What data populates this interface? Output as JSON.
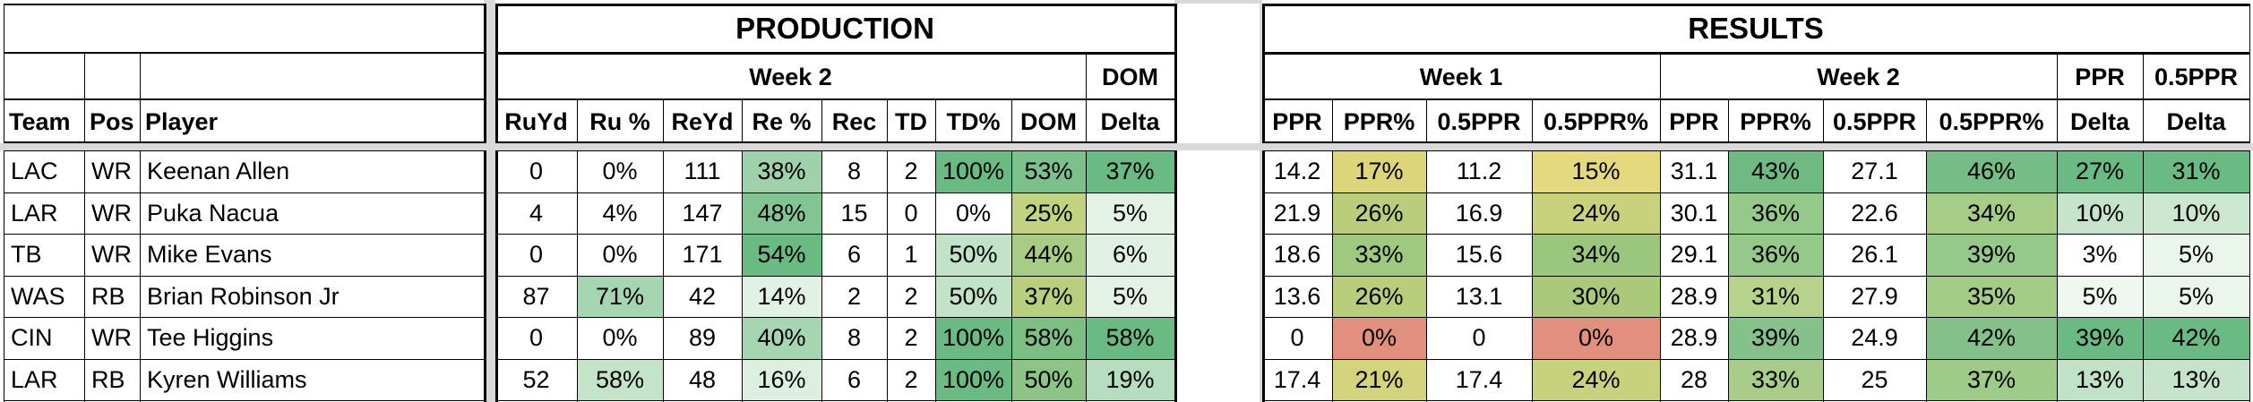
{
  "headers": {
    "production": "PRODUCTION",
    "results": "RESULTS",
    "prod_week2": "Week 2",
    "dom_top": "DOM",
    "dom_delta": "Delta",
    "res_week1": "Week 1",
    "res_week2": "Week 2",
    "ppr_top": "PPR",
    "ppr_delta": "Delta",
    "half_top": "0.5PPR",
    "half_delta": "Delta",
    "team": "Team",
    "pos": "Pos",
    "player": "Player",
    "ruyd": "RuYd",
    "rupct": "Ru %",
    "reyd": "ReYd",
    "repct": "Re %",
    "rec": "Rec",
    "td": "TD",
    "tdpct": "TD%",
    "dom": "DOM",
    "w1_ppr": "PPR",
    "w1_pprpct": "PPR%",
    "w1_half": "0.5PPR",
    "w1_halfpct": "0.5PPR%",
    "w2_ppr": "PPR",
    "w2_pprpct": "PPR%",
    "w2_half": "0.5PPR",
    "w2_halfpct": "0.5PPR%"
  },
  "colors": {
    "green_dark": "#6aba83",
    "green_mid": "#8ec99c",
    "green_light": "#c2e3c8",
    "green_pale": "#e4f2e6",
    "yellow_green": "#b5cc7a",
    "yellow": "#dfd77a",
    "yellow_light": "#e6dc86",
    "red": "#e38f7d"
  },
  "rows": [
    {
      "team": "LAC",
      "pos": "WR",
      "player": "Keenan Allen",
      "ruyd": "0",
      "rupct": "0%",
      "reyd": "111",
      "repct": "38%",
      "rec": "8",
      "td": "2",
      "tdpct": "100%",
      "dom": "53%",
      "domdelta": "37%",
      "w1ppr": "14.2",
      "w1pprpct": "17%",
      "w1half": "11.2",
      "w1halfpct": "15%",
      "w2ppr": "31.1",
      "w2pprpct": "43%",
      "w2half": "27.1",
      "w2halfpct": "46%",
      "pprdelta": "27%",
      "halfdelta": "31%",
      "bg": {
        "rupct": "",
        "repct": "#9fd1ab",
        "tdpct": "#6aba83",
        "dom": "#7cc08c",
        "domdelta": "#6aba83",
        "w1pprpct": "#dcd57a",
        "w1halfpct": "#e4d97e",
        "w2pprpct": "#6fb983",
        "w2halfpct": "#76bc86",
        "pprdelta": "#6aba83",
        "halfdelta": "#6aba83"
      }
    },
    {
      "team": "LAR",
      "pos": "WR",
      "player": "Puka Nacua",
      "ruyd": "4",
      "rupct": "4%",
      "reyd": "147",
      "repct": "48%",
      "rec": "15",
      "td": "0",
      "tdpct": "0%",
      "dom": "25%",
      "domdelta": "5%",
      "w1ppr": "21.9",
      "w1pprpct": "26%",
      "w1half": "16.9",
      "w1halfpct": "24%",
      "w2ppr": "30.1",
      "w2pprpct": "36%",
      "w2half": "22.6",
      "w2halfpct": "34%",
      "pprdelta": "10%",
      "halfdelta": "10%",
      "bg": {
        "rupct": "",
        "repct": "#83c493",
        "tdpct": "",
        "dom": "#c3d27f",
        "domdelta": "#e4f2e6",
        "w1pprpct": "#b9cd7a",
        "w1halfpct": "#c8d27c",
        "w2pprpct": "#95c98a",
        "w2halfpct": "#a6cd85",
        "pprdelta": "#c6e4cb",
        "halfdelta": "#cbe7d0"
      }
    },
    {
      "team": "TB",
      "pos": "WR",
      "player": "Mike Evans",
      "ruyd": "0",
      "rupct": "0%",
      "reyd": "171",
      "repct": "54%",
      "rec": "6",
      "td": "1",
      "tdpct": "50%",
      "dom": "44%",
      "domdelta": "6%",
      "w1ppr": "18.6",
      "w1pprpct": "33%",
      "w1half": "15.6",
      "w1halfpct": "34%",
      "w2ppr": "29.1",
      "w2pprpct": "36%",
      "w2half": "26.1",
      "w2halfpct": "39%",
      "pprdelta": "3%",
      "halfdelta": "5%",
      "bg": {
        "rupct": "",
        "repct": "#6aba83",
        "tdpct": "#c2e3c8",
        "dom": "#a7cc86",
        "domdelta": "#e0f0e3",
        "w1pprpct": "#9fc97e",
        "w1halfpct": "#9bc67d",
        "w2pprpct": "#95c98a",
        "w2halfpct": "#94c98a",
        "pprdelta": "",
        "halfdelta": "#eaf5ec"
      }
    },
    {
      "team": "WAS",
      "pos": "RB",
      "player": "Brian Robinson Jr",
      "ruyd": "87",
      "rupct": "71%",
      "reyd": "42",
      "repct": "14%",
      "rec": "2",
      "td": "2",
      "tdpct": "50%",
      "dom": "37%",
      "domdelta": "5%",
      "w1ppr": "13.6",
      "w1pprpct": "26%",
      "w1half": "13.1",
      "w1halfpct": "30%",
      "w2ppr": "28.9",
      "w2pprpct": "31%",
      "w2half": "27.9",
      "w2halfpct": "35%",
      "pprdelta": "5%",
      "halfdelta": "5%",
      "bg": {
        "rupct": "#a6d5b2",
        "repct": "#e1f1e4",
        "tdpct": "#c2e3c8",
        "dom": "#b8cf7e",
        "domdelta": "#e4f2e6",
        "w1pprpct": "#b9cd7a",
        "w1halfpct": "#aac97b",
        "w2pprpct": "#b7d28a",
        "w2halfpct": "#a3cd86",
        "pprdelta": "#eef7f0",
        "halfdelta": "#eaf5ec"
      }
    },
    {
      "team": "CIN",
      "pos": "WR",
      "player": "Tee Higgins",
      "ruyd": "0",
      "rupct": "0%",
      "reyd": "89",
      "repct": "40%",
      "rec": "8",
      "td": "2",
      "tdpct": "100%",
      "dom": "58%",
      "domdelta": "58%",
      "w1ppr": "0",
      "w1pprpct": "0%",
      "w1half": "0",
      "w1halfpct": "0%",
      "w2ppr": "28.9",
      "w2pprpct": "39%",
      "w2half": "24.9",
      "w2halfpct": "42%",
      "pprdelta": "39%",
      "halfdelta": "42%",
      "bg": {
        "rupct": "",
        "repct": "#a6d5b2",
        "tdpct": "#6aba83",
        "dom": "#7cbf83",
        "domdelta": "#6aba83",
        "w1pprpct": "#e38f7d",
        "w1halfpct": "#e38f7d",
        "w2pprpct": "#85c18a",
        "w2halfpct": "#84c18a",
        "pprdelta": "#6aba83",
        "halfdelta": "#6aba83"
      }
    },
    {
      "team": "LAR",
      "pos": "RB",
      "player": "Kyren Williams",
      "ruyd": "52",
      "rupct": "58%",
      "reyd": "48",
      "repct": "16%",
      "rec": "6",
      "td": "2",
      "tdpct": "100%",
      "dom": "50%",
      "domdelta": "19%",
      "w1ppr": "17.4",
      "w1pprpct": "21%",
      "w1half": "17.4",
      "w1halfpct": "24%",
      "w2ppr": "28",
      "w2pprpct": "33%",
      "w2half": "25",
      "w2halfpct": "37%",
      "pprdelta": "13%",
      "halfdelta": "13%",
      "bg": {
        "rupct": "#c4e4ca",
        "repct": "#dcefe0",
        "tdpct": "#6aba83",
        "dom": "#8cc485",
        "domdelta": "#b7ddc0",
        "w1pprpct": "#d3d47b",
        "w1halfpct": "#c8d27c",
        "w2pprpct": "#a8cd88",
        "w2halfpct": "#9fcb88",
        "pprdelta": "#c0e2c7",
        "halfdelta": "#c5e4cb"
      }
    }
  ]
}
